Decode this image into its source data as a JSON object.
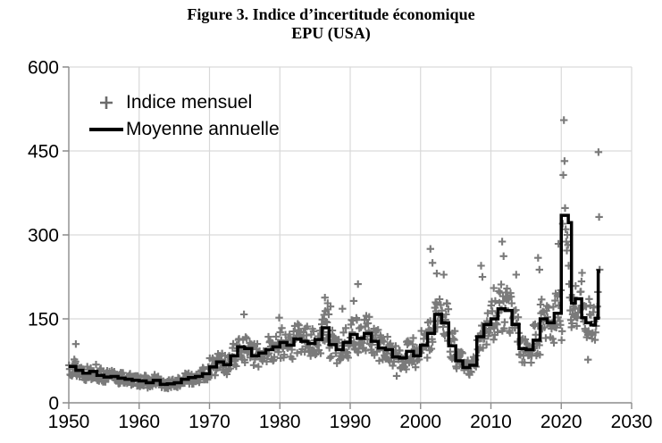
{
  "chart_data": {
    "type": "scatter",
    "title": "Figure 3. Indice d’incertitude économique",
    "subtitle": "EPU (USA)",
    "xlabel": "",
    "ylabel": "",
    "x_range": [
      1950,
      2030
    ],
    "y_range": [
      0,
      600
    ],
    "x_ticks": [
      "1950",
      "1960",
      "1970",
      "1980",
      "1990",
      "2000",
      "2010",
      "2020",
      "2030"
    ],
    "y_ticks": [
      "0",
      "150",
      "300",
      "450",
      "600"
    ],
    "grid": true,
    "legend_position": "top-left-inside",
    "series": [
      {
        "name": "Indice mensuel",
        "type": "scatter",
        "marker": "plus",
        "color": "#6b6b6b"
      },
      {
        "name": "Moyenne annuelle",
        "type": "step_line",
        "color": "#000000",
        "stroke_width": 3.5
      }
    ],
    "annual_means": {
      "start_year": 1950,
      "values": [
        65,
        58,
        53,
        56,
        49,
        46,
        47,
        44,
        42,
        40,
        39,
        36,
        40,
        33,
        34,
        36,
        42,
        45,
        47,
        52,
        64,
        73,
        68,
        84,
        100,
        97,
        84,
        89,
        95,
        100,
        108,
        103,
        114,
        110,
        106,
        113,
        134,
        104,
        95,
        108,
        122,
        115,
        124,
        110,
        98,
        95,
        82,
        80,
        92,
        84,
        103,
        124,
        158,
        143,
        102,
        75,
        63,
        67,
        118,
        140,
        150,
        168,
        165,
        140,
        97,
        95,
        112,
        150,
        143,
        160,
        310,
        190,
        185,
        150,
        145
      ]
    },
    "line_years_from_means": [
      1950,
      2019
    ],
    "line_tail_breakpoints": [
      [
        2020,
        335
      ],
      [
        2021,
        322
      ],
      [
        2021.45,
        178
      ],
      [
        2022,
        186
      ],
      [
        2022.9,
        152
      ],
      [
        2023.5,
        143
      ],
      [
        2024.2,
        139
      ],
      [
        2024.85,
        151
      ],
      [
        2025.25,
        236
      ]
    ],
    "line_end_year": 2025.55,
    "monthly_outliers": [
      [
        1951.0,
        105
      ],
      [
        1974.9,
        158
      ],
      [
        1979.9,
        152
      ],
      [
        1986.4,
        188
      ],
      [
        1986.8,
        178
      ],
      [
        1987.2,
        172
      ],
      [
        1988.9,
        168
      ],
      [
        1990.5,
        182
      ],
      [
        1991.1,
        212
      ],
      [
        1996.6,
        48
      ],
      [
        2001.4,
        275
      ],
      [
        2001.7,
        250
      ],
      [
        2002.3,
        231
      ],
      [
        2003.3,
        229
      ],
      [
        2008.6,
        245
      ],
      [
        2008.8,
        225
      ],
      [
        2010.4,
        205
      ],
      [
        2011.6,
        288
      ],
      [
        2011.8,
        262
      ],
      [
        2013.6,
        229
      ],
      [
        2016.7,
        259
      ],
      [
        2016.9,
        238
      ],
      [
        2019.6,
        284
      ],
      [
        2023.8,
        77
      ]
    ],
    "monthly_overrides": {
      "2020": [
        112,
        128,
        320,
        407,
        505,
        432,
        348,
        310,
        288,
        272,
        300,
        282
      ],
      "2021": [
        245,
        212,
        188,
        165,
        148,
        135,
        142,
        158,
        172,
        188,
        155,
        168
      ],
      "2025": [
        152,
        172,
        198,
        448,
        332,
        238
      ]
    },
    "scatter_spread_pct": 26,
    "scatter_seed": 13
  },
  "colors": {
    "grid": "#d9d9d9",
    "axis": "#8c8c8c",
    "scatter": "#6b6b6b",
    "line": "#000000",
    "text": "#000000"
  }
}
